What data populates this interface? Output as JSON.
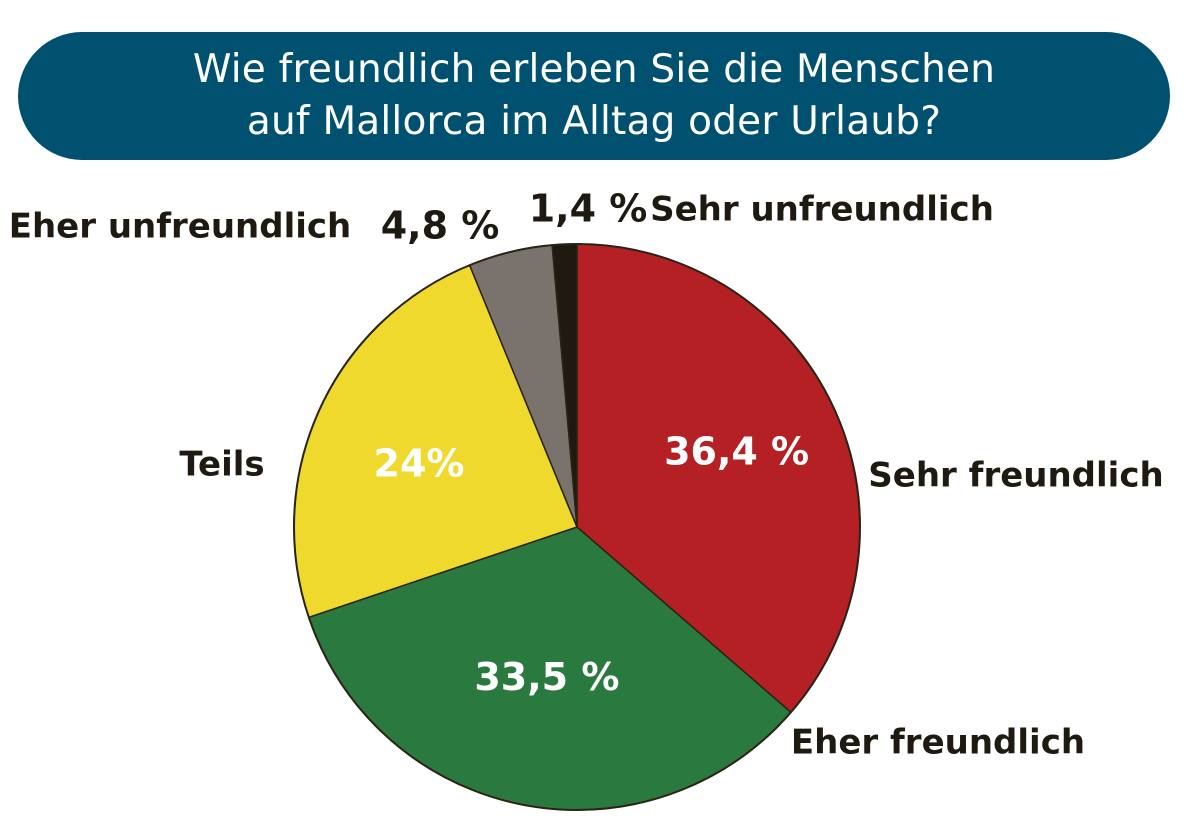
{
  "header": {
    "title_line1": "Wie freundlich erleben Sie die Menschen",
    "title_line2": "auf Mallorca im Alltag oder Urlaub?"
  },
  "chart_data": {
    "type": "pie",
    "title": "Wie freundlich erleben Sie die Menschen auf Mallorca im Alltag oder Urlaub?",
    "slices": [
      {
        "label": "Sehr freundlich",
        "value": 36.4,
        "value_label": "36,4 %",
        "color": "#b52025",
        "value_color": "#ffffff"
      },
      {
        "label": "Eher freundlich",
        "value": 33.5,
        "value_label": "33,5 %",
        "color": "#2a7a3f",
        "value_color": "#ffffff"
      },
      {
        "label": "Teils",
        "value": 24.0,
        "value_label": "24%",
        "color": "#eed92c",
        "value_color": "#ffffff"
      },
      {
        "label": "Eher unfreundlich",
        "value": 4.8,
        "value_label": "4,8 %",
        "color": "#7a736d",
        "value_color": "#1e1a12"
      },
      {
        "label": "Sehr unfreundlich",
        "value": 1.4,
        "value_label": "1,4 %",
        "color": "#1e1a12",
        "value_color": "#1e1a12"
      }
    ],
    "start_angle_deg": 0,
    "direction": "clockwise",
    "legend": "none"
  }
}
